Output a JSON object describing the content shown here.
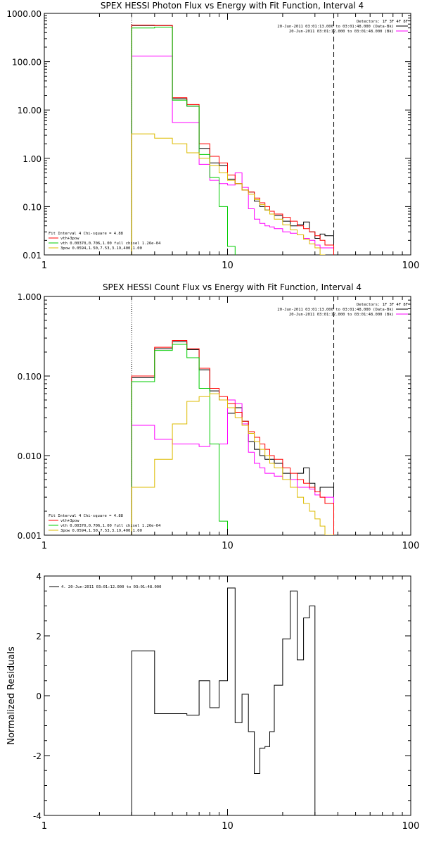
{
  "chart_data": [
    {
      "type": "line",
      "title": "SPEX HESSI Photon Flux vs Energy with Fit Function, Interval 4",
      "xlabel": "",
      "ylabel": "",
      "xscale": "log",
      "yscale": "log",
      "xlim": [
        1,
        100
      ],
      "ylim": [
        0.01,
        1000
      ],
      "x_tick_labels": [
        "1",
        "10",
        "100"
      ],
      "y_tick_values": [
        0.01,
        0.1,
        1,
        10,
        100,
        1000
      ],
      "y_tick_labels": [
        "0.01",
        "0.10",
        "1.00",
        "10.00",
        "100.00",
        "1000.00"
      ],
      "energy_edges": [
        3,
        4,
        5,
        6,
        7,
        8,
        9,
        10,
        11,
        12,
        13,
        14,
        15,
        16,
        17,
        18,
        20,
        22,
        24,
        26,
        28,
        30,
        32,
        34,
        38
      ],
      "series": [
        {
          "name": "20-Jun-2011 03:01:13.000 to 03:01:48.000 (Data-Bk)",
          "color": "#000000",
          "values": [
            560,
            560,
            17,
            12,
            1.6,
            0.8,
            0.7,
            0.37,
            0.3,
            0.22,
            0.2,
            0.13,
            0.1,
            0.085,
            0.07,
            0.065,
            0.05,
            0.04,
            0.042,
            0.048,
            0.03,
            0.022,
            0.027,
            0.025
          ]
        },
        {
          "name": "20-Jun-2011 03:01:12.000 to 03:01:48.000 (Bk)",
          "color": "#ff00ff",
          "values": [
            130,
            130,
            5.5,
            5.5,
            0.75,
            0.35,
            0.3,
            0.28,
            0.5,
            0.25,
            0.09,
            0.055,
            0.045,
            0.04,
            0.038,
            0.035,
            0.03,
            0.028,
            0.026,
            0.022,
            0.02,
            0.016,
            0.014,
            0.014
          ]
        },
        {
          "name": "vth+3pow",
          "color": "#ff0000",
          "values": [
            570,
            560,
            18,
            13,
            2,
            1.1,
            0.8,
            0.45,
            0.3,
            0.22,
            0.2,
            0.15,
            0.12,
            0.1,
            0.08,
            0.07,
            0.06,
            0.05,
            0.04,
            0.035,
            0.03,
            0.025,
            0.02,
            0.016
          ]
        },
        {
          "name": "vth 0.00370,0.706,1.00  full chisel 1.26e-04",
          "color": "#00cc00",
          "values": [
            500,
            520,
            16,
            12,
            1.2,
            0.4,
            0.1,
            0.015,
            0.003
          ]
        },
        {
          "name": "3pow 0.0594,1.50,7.53,3.19,400,1.00",
          "color": "#ddbb00",
          "values": [
            3.2,
            2.6,
            2,
            1.3,
            1,
            0.7,
            0.5,
            0.35,
            0.3,
            0.22,
            0.18,
            0.14,
            0.11,
            0.085,
            0.07,
            0.055,
            0.042,
            0.033,
            0.026,
            0.021,
            0.017,
            0.014,
            0.01,
            0.008
          ]
        }
      ],
      "vlines": [
        {
          "x": 3,
          "style": "dotted"
        },
        {
          "x": 38,
          "style": "dashed"
        }
      ],
      "legend_top": {
        "detectors": "Detectors: 1F 3F 4F 8F",
        "placement": "top-right"
      },
      "legend_bottom": {
        "header": "Fit Interval  4     Chi-square = 4.88",
        "placement": "bottom-left"
      }
    },
    {
      "type": "line",
      "title": "SPEX HESSI Count Flux vs Energy with Fit Function, Interval 4",
      "xlabel": "",
      "ylabel": "",
      "xscale": "log",
      "yscale": "log",
      "xlim": [
        1,
        100
      ],
      "ylim": [
        0.001,
        1
      ],
      "x_tick_labels": [
        "1",
        "10",
        "100"
      ],
      "y_tick_values": [
        0.001,
        0.01,
        0.1,
        1
      ],
      "y_tick_labels": [
        "0.001",
        "0.010",
        "0.100",
        "1.000"
      ],
      "energy_edges": [
        3,
        4,
        5,
        6,
        7,
        8,
        9,
        10,
        11,
        12,
        13,
        14,
        15,
        16,
        17,
        18,
        20,
        22,
        24,
        26,
        28,
        30,
        32,
        34,
        38
      ],
      "series": [
        {
          "name": "20-Jun-2011 03:01:13.000 to 03:01:48.000 (Data-Bk)",
          "color": "#000000",
          "values": [
            0.095,
            0.22,
            0.27,
            0.215,
            0.12,
            0.065,
            0.05,
            0.034,
            0.04,
            0.027,
            0.015,
            0.012,
            0.01,
            0.009,
            0.009,
            0.008,
            0.006,
            0.005,
            0.006,
            0.007,
            0.0045,
            0.0035,
            0.004,
            0.004
          ]
        },
        {
          "name": "20-Jun-2011 03:01:12.000 to 03:01:48.000 (Bk)",
          "color": "#ff00ff",
          "values": [
            0.024,
            0.016,
            0.014,
            0.014,
            0.013,
            0.014,
            0.014,
            0.05,
            0.045,
            0.025,
            0.011,
            0.008,
            0.007,
            0.006,
            0.006,
            0.0055,
            0.005,
            0.005,
            0.004,
            0.004,
            0.0038,
            0.0032,
            0.003,
            0.003
          ]
        },
        {
          "name": "vth+3pow",
          "color": "#ff0000",
          "values": [
            0.1,
            0.23,
            0.28,
            0.22,
            0.125,
            0.07,
            0.055,
            0.045,
            0.035,
            0.027,
            0.02,
            0.017,
            0.014,
            0.012,
            0.01,
            0.009,
            0.007,
            0.006,
            0.005,
            0.0045,
            0.004,
            0.0035,
            0.003,
            0.0025
          ]
        },
        {
          "name": "vth 0.00370,0.706,1.00  full chisel 1.26e-04",
          "color": "#00cc00",
          "values": [
            0.085,
            0.21,
            0.25,
            0.17,
            0.07,
            0.014,
            0.0015,
            0.0003
          ]
        },
        {
          "name": "3pow 0.0594,1.50,7.53,3.19,400,1.00",
          "color": "#ddbb00",
          "values": [
            0.004,
            0.009,
            0.025,
            0.048,
            0.055,
            0.06,
            0.05,
            0.04,
            0.03,
            0.024,
            0.019,
            0.015,
            0.012,
            0.01,
            0.008,
            0.007,
            0.005,
            0.004,
            0.003,
            0.0025,
            0.002,
            0.0016,
            0.0013,
            0.001
          ]
        }
      ],
      "vlines": [
        {
          "x": 3,
          "style": "dotted"
        },
        {
          "x": 38,
          "style": "dashed"
        }
      ],
      "legend_top": {
        "detectors": "Detectors: 1F 3F 4F 8F",
        "placement": "top-right"
      },
      "legend_bottom": {
        "header": "Fit Interval  4     Chi-square = 4.88",
        "placement": "bottom-left"
      }
    },
    {
      "type": "line",
      "title": "",
      "xlabel": "",
      "ylabel": "Normalized Residuals",
      "xscale": "log",
      "yscale": "linear",
      "xlim": [
        1,
        100
      ],
      "ylim": [
        -4,
        4
      ],
      "x_tick_labels": [
        "1",
        "10",
        "100"
      ],
      "y_tick_values": [
        -4,
        -2,
        0,
        2,
        4
      ],
      "y_tick_labels": [
        "-4",
        "-2",
        "0",
        "2",
        "4"
      ],
      "energy_edges": [
        3,
        4,
        5,
        6,
        7,
        8,
        9,
        10,
        11,
        12,
        13,
        14,
        15,
        16,
        17,
        18,
        20,
        22,
        24,
        26,
        28,
        30,
        32,
        34,
        38
      ],
      "series": [
        {
          "name": "4. 20-Jun-2011 03:01:12.000 to 03:01:48.000",
          "color": "#000000",
          "values": [
            1.5,
            -0.6,
            -0.6,
            -0.65,
            0.5,
            -0.4,
            0.5,
            3.6,
            -0.9,
            0.05,
            -1.2,
            -2.6,
            -1.75,
            -1.7,
            -1.2,
            0.35,
            1.9,
            3.5,
            1.2,
            2.6,
            3.0
          ]
        }
      ],
      "vlines": [],
      "legend_top": {
        "placement": "top-left"
      }
    }
  ],
  "legend_texts": {
    "p1_detectors": "Detectors: 1F 3F 4F 8F",
    "p1_data": "20-Jun-2011 03:01:13.000 to 03:01:48.000 (Data-Bk)",
    "p1_bk": "20-Jun-2011 03:01:12.000 to 03:01:48.000 (Bk)",
    "p1_fit": "Fit Interval  4     Chi-square = 4.88",
    "p1_m1": "vth+3pow",
    "p1_m2": "vth 0.00370,0.706,1.00  full chisel 1.26e-04",
    "p1_m3": "3pow 0.0594,1.50,7.53,3.19,400,1.00",
    "p2_detectors": "Detectors: 1F 3F 4F 8F",
    "p2_data": "20-Jun-2011 03:01:13.000 to 03:01:48.000 (Data-Bk)",
    "p2_bk": "20-Jun-2011 03:01:12.000 to 03:01:48.000 (Bk)",
    "p2_fit": "Fit Interval  4     Chi-square = 4.88",
    "p2_m1": "vth+3pow",
    "p2_m2": "vth 0.00370,0.706,1.00  full chisel 1.26e-04",
    "p2_m3": "3pow 0.0594,1.50,7.53,3.19,400,1.00",
    "p3_series": "4. 20-Jun-2011 03:01:12.000 to 03:01:48.000"
  }
}
